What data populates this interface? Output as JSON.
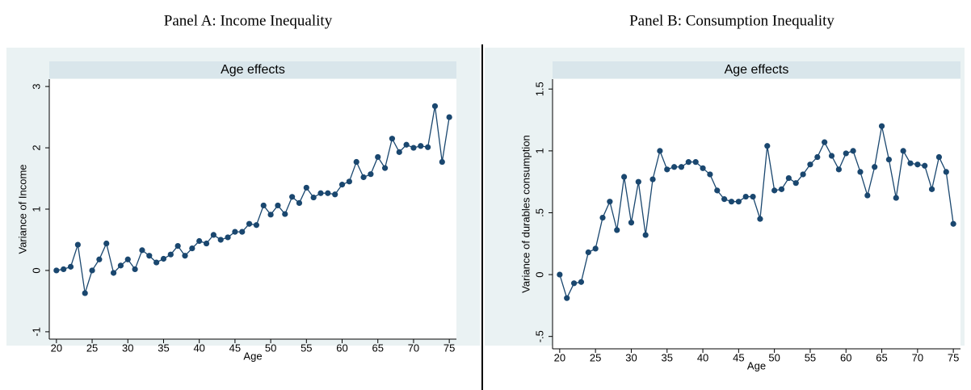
{
  "chart_data": [
    {
      "type": "line",
      "panel_label": "Panel A: Income Inequality",
      "title": "Age effects",
      "xlabel": "Age",
      "ylabel": "Variance of Income",
      "color": "#1a476f",
      "grid": false,
      "x": [
        20,
        21,
        22,
        23,
        24,
        25,
        26,
        27,
        28,
        29,
        30,
        31,
        32,
        33,
        34,
        35,
        36,
        37,
        38,
        39,
        40,
        41,
        42,
        43,
        44,
        45,
        46,
        47,
        48,
        49,
        50,
        51,
        52,
        53,
        54,
        55,
        56,
        57,
        58,
        59,
        60,
        61,
        62,
        63,
        64,
        65,
        66,
        67,
        68,
        69,
        70,
        71,
        72,
        73,
        74,
        75
      ],
      "values": [
        0.0,
        0.02,
        0.06,
        0.42,
        -0.37,
        0.0,
        0.18,
        0.44,
        -0.04,
        0.08,
        0.18,
        0.02,
        0.33,
        0.24,
        0.13,
        0.19,
        0.26,
        0.4,
        0.24,
        0.36,
        0.48,
        0.44,
        0.58,
        0.5,
        0.54,
        0.63,
        0.63,
        0.76,
        0.74,
        1.06,
        0.91,
        1.06,
        0.92,
        1.2,
        1.1,
        1.35,
        1.19,
        1.26,
        1.26,
        1.24,
        1.4,
        1.45,
        1.77,
        1.52,
        1.57,
        1.85,
        1.67,
        2.15,
        1.93,
        2.05,
        2.0,
        2.03,
        2.01,
        2.68,
        1.77,
        2.5
      ],
      "xlim": [
        19,
        76
      ],
      "xticks": [
        20,
        25,
        30,
        35,
        40,
        45,
        50,
        55,
        60,
        65,
        70,
        75
      ],
      "ylim": [
        -1.12,
        3.12
      ],
      "yticks": [
        -1,
        0,
        1,
        2,
        3
      ]
    },
    {
      "type": "line",
      "panel_label": "Panel B: Consumption Inequality",
      "title": "Age effects",
      "xlabel": "Age",
      "ylabel": "Variance of durables consumption",
      "color": "#1a476f",
      "grid": false,
      "x": [
        20,
        21,
        22,
        23,
        24,
        25,
        26,
        27,
        28,
        29,
        30,
        31,
        32,
        33,
        34,
        35,
        36,
        37,
        38,
        39,
        40,
        41,
        42,
        43,
        44,
        45,
        46,
        47,
        48,
        49,
        50,
        51,
        52,
        53,
        54,
        55,
        56,
        57,
        58,
        59,
        60,
        61,
        62,
        63,
        64,
        65,
        66,
        67,
        68,
        69,
        70,
        71,
        72,
        73,
        74,
        75
      ],
      "values": [
        0.0,
        -0.19,
        -0.07,
        -0.06,
        0.18,
        0.21,
        0.46,
        0.59,
        0.36,
        0.79,
        0.42,
        0.75,
        0.32,
        0.77,
        1.0,
        0.85,
        0.87,
        0.87,
        0.91,
        0.91,
        0.86,
        0.81,
        0.68,
        0.61,
        0.59,
        0.59,
        0.63,
        0.63,
        0.45,
        1.04,
        0.68,
        0.69,
        0.78,
        0.74,
        0.81,
        0.89,
        0.95,
        1.07,
        0.96,
        0.85,
        0.98,
        1.0,
        0.83,
        0.64,
        0.87,
        1.2,
        0.93,
        0.62,
        1.0,
        0.9,
        0.89,
        0.88,
        0.69,
        0.95,
        0.83,
        0.41
      ],
      "xlim": [
        19,
        76
      ],
      "xticks": [
        20,
        25,
        30,
        35,
        40,
        45,
        50,
        55,
        60,
        65,
        70,
        75
      ],
      "ylim": [
        -0.6,
        1.58
      ],
      "yticks": [
        {
          "value": -0.5,
          "label": "-.5"
        },
        0,
        {
          "value": 0.5,
          "label": ".5"
        },
        1,
        1.5
      ]
    }
  ]
}
